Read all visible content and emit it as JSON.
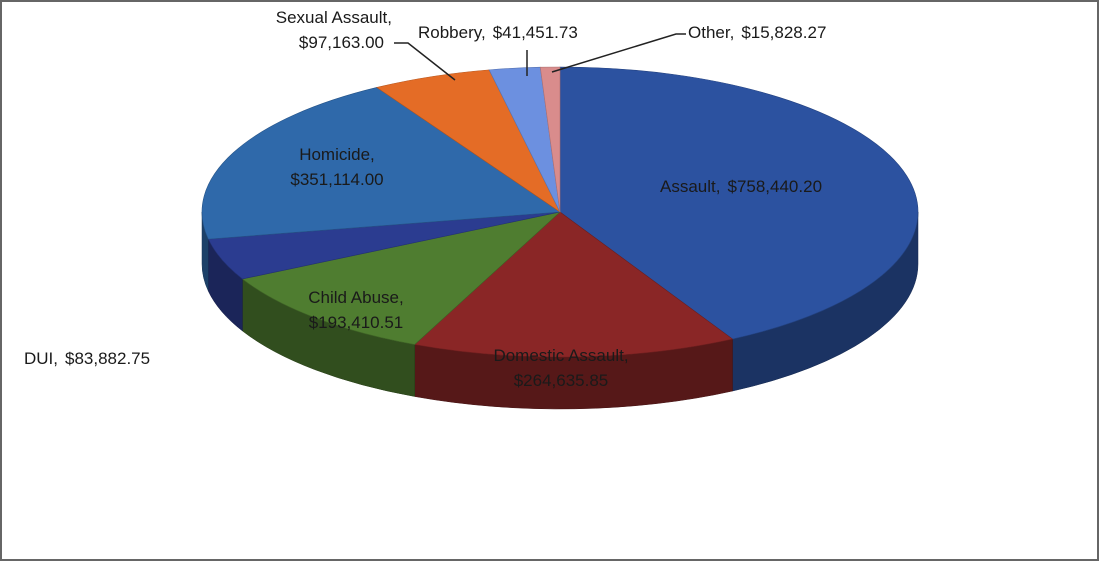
{
  "chart_data": {
    "type": "pie",
    "categories": [
      "Assault,",
      "Domestic Assault,",
      "Child Abuse,",
      "DUI,",
      "Homicide,",
      "Sexual Assault,",
      "Robbery,",
      "Other,"
    ],
    "values": [
      758440.2,
      264635.85,
      193410.51,
      83882.75,
      351114.0,
      97163.0,
      41451.73,
      15828.27
    ],
    "value_labels": [
      "$758,440.20",
      "$264,635.85",
      "$193,410.51",
      "$83,882.75",
      "$351,114.00",
      "$97,163.00",
      "$41,451.73",
      "$15,828.27"
    ],
    "colors": [
      "#2c52a0",
      "#8a2626",
      "#4f7d30",
      "#2b3c90",
      "#2f69aa",
      "#e46c26",
      "#6c90e0",
      "#d98c8c"
    ]
  }
}
